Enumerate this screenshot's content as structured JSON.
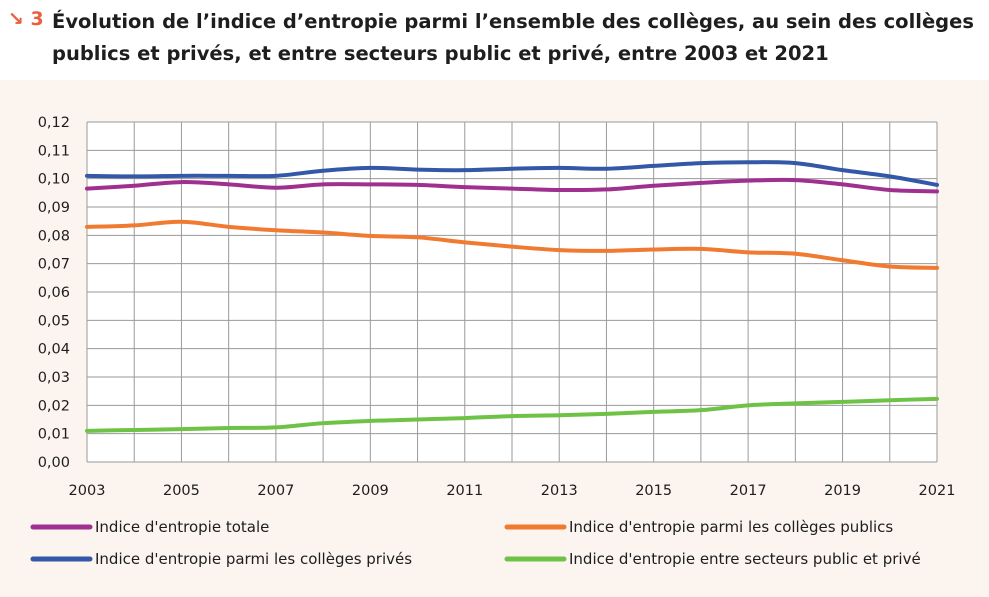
{
  "figure": {
    "number": "3",
    "title": "Évolution de l’indice d’entropie parmi l’ensemble des collèges, au sein des collèges publics et privés, et entre secteurs public et privé, entre 2003 et 2021"
  },
  "chart_data": {
    "type": "line",
    "x": [
      2003,
      2004,
      2005,
      2006,
      2007,
      2008,
      2009,
      2010,
      2011,
      2012,
      2013,
      2014,
      2015,
      2016,
      2017,
      2018,
      2019,
      2020,
      2021
    ],
    "x_ticks": [
      "2003",
      "2005",
      "2007",
      "2009",
      "2011",
      "2013",
      "2015",
      "2017",
      "2019",
      "2021"
    ],
    "y_ticks": [
      "0,00",
      "0,01",
      "0,02",
      "0,03",
      "0,04",
      "0,05",
      "0,06",
      "0,07",
      "0,08",
      "0,09",
      "0,10",
      "0,11",
      "0,12"
    ],
    "ylim": [
      0,
      0.12
    ],
    "xlim": [
      2003,
      2021
    ],
    "grid": true,
    "legend_position": "bottom",
    "series": [
      {
        "name": "Indice d'entropie totale",
        "color": "#a0308f",
        "values": [
          0.0965,
          0.0975,
          0.0988,
          0.098,
          0.0968,
          0.098,
          0.098,
          0.0978,
          0.097,
          0.0965,
          0.096,
          0.0962,
          0.0975,
          0.0985,
          0.0993,
          0.0995,
          0.098,
          0.096,
          0.0955
        ]
      },
      {
        "name": "Indice d'entropie parmi les collèges publics",
        "color": "#f07a30",
        "values": [
          0.083,
          0.0835,
          0.0848,
          0.083,
          0.0818,
          0.081,
          0.0798,
          0.0793,
          0.0775,
          0.076,
          0.0748,
          0.0745,
          0.075,
          0.0752,
          0.074,
          0.0735,
          0.0712,
          0.069,
          0.0685
        ]
      },
      {
        "name": "Indice d'entropie parmi les collèges privés",
        "color": "#3358a8",
        "values": [
          0.101,
          0.1008,
          0.101,
          0.101,
          0.101,
          0.1028,
          0.1038,
          0.1032,
          0.103,
          0.1035,
          0.1038,
          0.1035,
          0.1045,
          0.1055,
          0.1058,
          0.1055,
          0.103,
          0.1008,
          0.0978
        ]
      },
      {
        "name": "Indice d'entropie entre secteurs public et privé",
        "color": "#6ec246",
        "values": [
          0.011,
          0.0113,
          0.0116,
          0.012,
          0.0122,
          0.0137,
          0.0145,
          0.015,
          0.0155,
          0.0162,
          0.0165,
          0.017,
          0.0177,
          0.0183,
          0.02,
          0.0207,
          0.0212,
          0.0218,
          0.0223
        ]
      }
    ]
  }
}
